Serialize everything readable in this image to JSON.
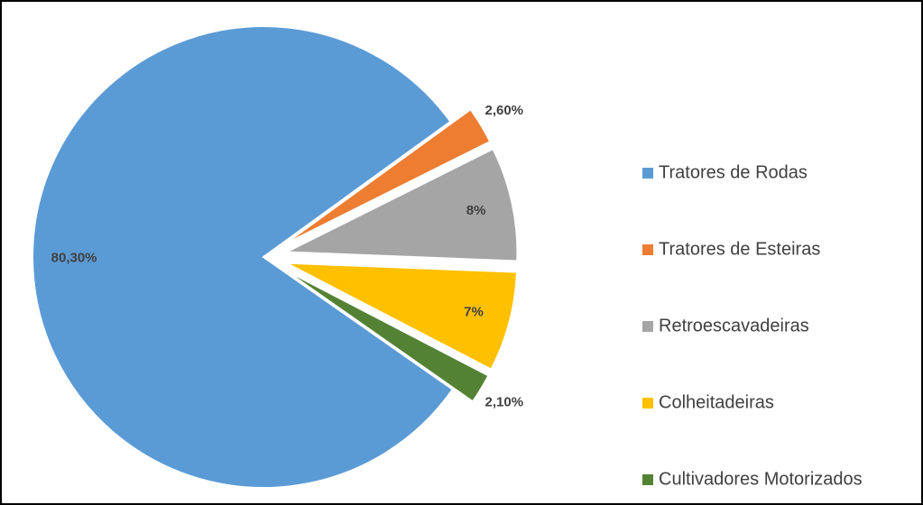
{
  "chart_data": {
    "type": "pie",
    "categories": [
      "Tratores de Rodas",
      "Tratores de Esteiras",
      "Retroescavadeiras",
      "Colheitadeiras",
      "Cultivadores Motorizados"
    ],
    "values": [
      80.3,
      2.6,
      8,
      7,
      2.1
    ],
    "value_labels": [
      "80,30%",
      "2,60%",
      "8%",
      "7%",
      "2,10%"
    ],
    "colors": [
      "#5b9bd5",
      "#ed7d31",
      "#a5a5a5",
      "#ffc000",
      "#548235"
    ],
    "legend": "right"
  }
}
